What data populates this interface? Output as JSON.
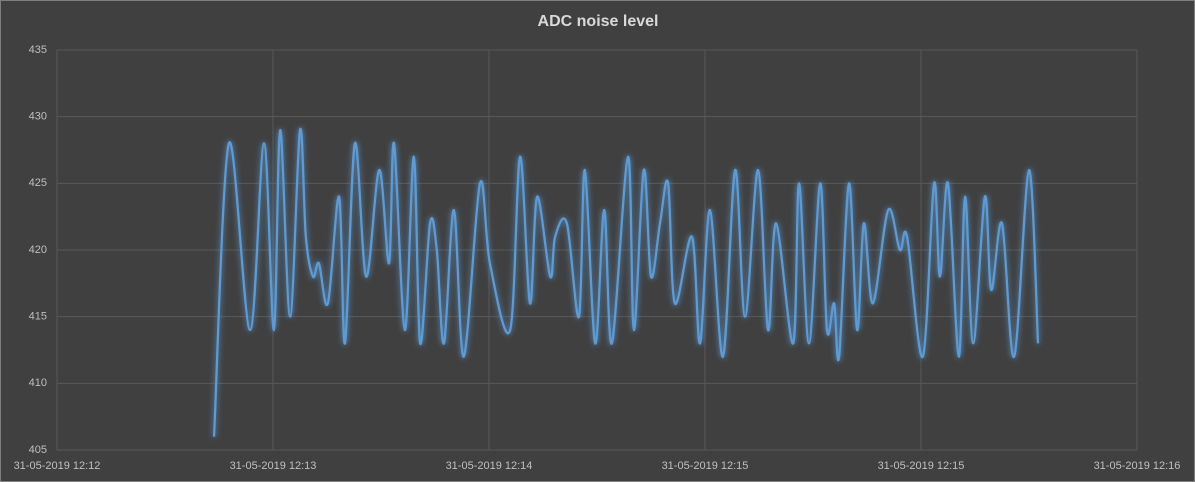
{
  "chart_data": {
    "type": "line",
    "title": "ADC noise level",
    "x": [
      34.9,
      38.2,
      42.9,
      46.0,
      48.2,
      49.6,
      51.8,
      54.0,
      55.3,
      56.9,
      58.2,
      60.2,
      62.7,
      64.0,
      66.2,
      68.7,
      71.6,
      73.8,
      74.9,
      77.3,
      79.3,
      80.7,
      82.9,
      84.4,
      86.0,
      88.2,
      90.4,
      94.0,
      96.2,
      100.7,
      102.9,
      105.1,
      106.7,
      109.6,
      110.7,
      113.3,
      116.0,
      117.3,
      119.6,
      121.6,
      123.3,
      126.9,
      128.2,
      130.4,
      132.0,
      134.0,
      135.8,
      137.3,
      141.1,
      142.9,
      145.1,
      148.0,
      150.7,
      152.9,
      155.8,
      158.0,
      159.8,
      163.6,
      164.9,
      167.1,
      169.6,
      171.1,
      172.7,
      173.8,
      176.0,
      177.8,
      179.3,
      181.3,
      184.7,
      187.3,
      188.9,
      192.4,
      194.9,
      196.2,
      198.0,
      200.4,
      201.8,
      203.6,
      206.2,
      207.6,
      210.0,
      212.7,
      216.0,
      218.0
    ],
    "series": [
      {
        "color": "#5b9bd5",
        "values": [
          406,
          428,
          414,
          428,
          414,
          429,
          415,
          429,
          421,
          418,
          419,
          416,
          424,
          413,
          428,
          418,
          426,
          419,
          428,
          414,
          427,
          413,
          422,
          420,
          413,
          423,
          412,
          425,
          419,
          414,
          427,
          416,
          424,
          418,
          421,
          422,
          415,
          426,
          413,
          423,
          413,
          427,
          414,
          426,
          418,
          422,
          425,
          416,
          421,
          413,
          423,
          412,
          426,
          415,
          426,
          414,
          422,
          413,
          425,
          413,
          425,
          414,
          416,
          412,
          425,
          414,
          422,
          416,
          423,
          420,
          421,
          412,
          425,
          418,
          425,
          412,
          424,
          413,
          424,
          417,
          422,
          412,
          426,
          413
        ]
      }
    ],
    "xlim": [
      0,
      240
    ],
    "xticks": [
      {
        "value": 0,
        "label": "31-05-2019 12:12"
      },
      {
        "value": 48,
        "label": "31-05-2019 12:13"
      },
      {
        "value": 96,
        "label": "31-05-2019 12:14"
      },
      {
        "value": 144,
        "label": "31-05-2019 12:15"
      },
      {
        "value": 192,
        "label": "31-05-2019 12:15"
      },
      {
        "value": 240,
        "label": "31-05-2019 12:16"
      }
    ],
    "ylim": [
      405,
      435
    ],
    "yticks": [
      405,
      410,
      415,
      420,
      425,
      430,
      435
    ],
    "grid": true
  }
}
